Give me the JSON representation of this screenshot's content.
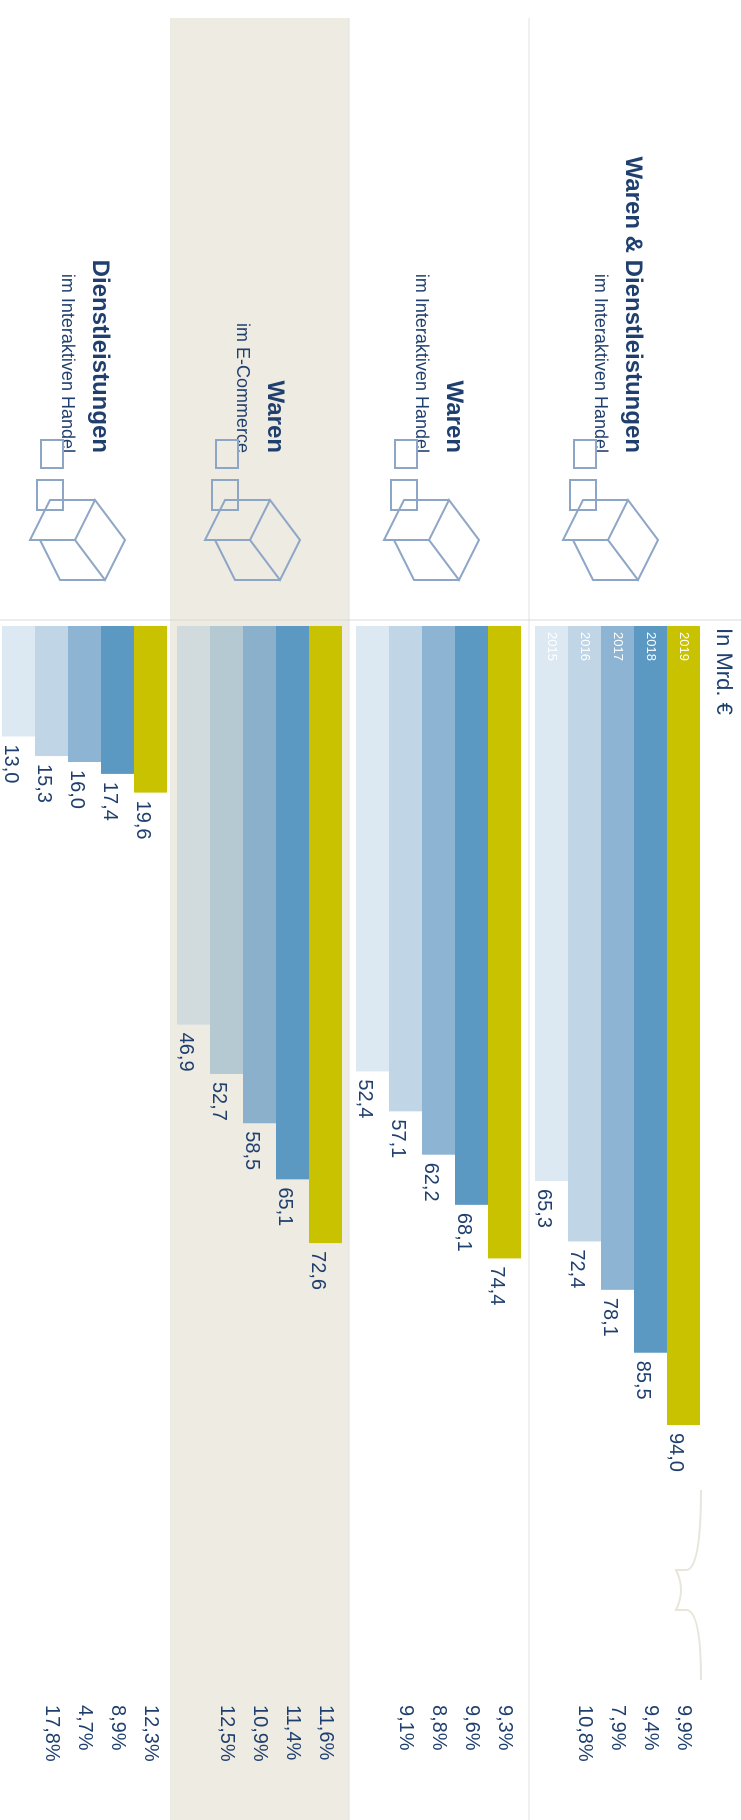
{
  "chart_data": {
    "type": "bar",
    "unit_label": "In Mrd. €",
    "categories": [
      "2019",
      "2018",
      "2017",
      "2016",
      "2015"
    ],
    "groups": [
      {
        "title": "Waren & Dienstleistungen",
        "subtitle": "im Interaktiven Handel",
        "colors": [
          "#c9c200",
          "#5b98c2",
          "#8db4d2",
          "#c0d6e6",
          "#dce9f2"
        ],
        "values": [
          94.0,
          85.5,
          78.1,
          72.4,
          65.3
        ],
        "value_labels": [
          "94,0",
          "85,5",
          "78,1",
          "72,4",
          "65,3"
        ],
        "growth": [
          9.9,
          9.4,
          7.9,
          10.8
        ],
        "growth_labels": [
          "9,9%",
          "9,4%",
          "7,9%",
          "10,8%"
        ]
      },
      {
        "title": "Waren",
        "subtitle": "im Interaktiven Handel",
        "colors": [
          "#c9c200",
          "#5b98c2",
          "#8db4d2",
          "#c0d6e6",
          "#dce9f2"
        ],
        "values": [
          74.4,
          68.1,
          62.2,
          57.1,
          52.4
        ],
        "value_labels": [
          "74,4",
          "68,1",
          "62,2",
          "57,1",
          "52,4"
        ],
        "growth": [
          9.3,
          9.6,
          8.8,
          9.1
        ],
        "growth_labels": [
          "9,3%",
          "9,6%",
          "8,8%",
          "9,1%"
        ]
      },
      {
        "title": "Waren",
        "subtitle": "im E-Commerce",
        "colors": [
          "#c9c200",
          "#5b98c2",
          "#8bb0cc",
          "#b4c9d2",
          "#d1dbde"
        ],
        "values": [
          72.6,
          65.1,
          58.5,
          52.7,
          46.9
        ],
        "value_labels": [
          "72,6",
          "65,1",
          "58,5",
          "52,7",
          "46,9"
        ],
        "growth": [
          11.6,
          11.4,
          10.9,
          12.5
        ],
        "growth_labels": [
          "11,6%",
          "11,4%",
          "10,9%",
          "12,5%"
        ]
      },
      {
        "title": "Dienstleistungen",
        "subtitle": "im Interaktiven Handel",
        "colors": [
          "#c9c200",
          "#5b98c2",
          "#8db4d2",
          "#c0d6e6",
          "#dce9f2"
        ],
        "values": [
          19.6,
          17.4,
          16.0,
          15.3,
          13.0
        ],
        "value_labels": [
          "19,6",
          "17,4",
          "16,0",
          "15,3",
          "13,0"
        ],
        "growth": [
          12.3,
          8.9,
          4.7,
          17.8
        ],
        "growth_labels": [
          "12,3%",
          "8,9%",
          "4,7%",
          "17,8%"
        ]
      }
    ]
  }
}
